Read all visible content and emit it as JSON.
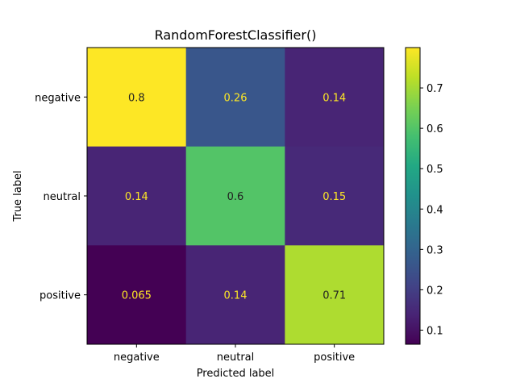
{
  "chart_data": {
    "type": "heatmap",
    "title": "RandomForestClassifier()",
    "xlabel": "Predicted label",
    "ylabel": "True label",
    "x_categories": [
      "negative",
      "neutral",
      "positive"
    ],
    "y_categories": [
      "negative",
      "neutral",
      "positive"
    ],
    "values": [
      [
        0.8,
        0.26,
        0.14
      ],
      [
        0.14,
        0.6,
        0.15
      ],
      [
        0.065,
        0.14,
        0.71
      ]
    ],
    "cell_labels": [
      [
        "0.8",
        "0.26",
        "0.14"
      ],
      [
        "0.14",
        "0.6",
        "0.15"
      ],
      [
        "0.065",
        "0.14",
        "0.71"
      ]
    ],
    "colormap": "viridis",
    "vmin": 0.065,
    "vmax": 0.8,
    "colorbar_ticks": [
      0.1,
      0.2,
      0.3,
      0.4,
      0.5,
      0.6,
      0.7
    ],
    "colorbar_tick_labels": [
      "0.1",
      "0.2",
      "0.3",
      "0.4",
      "0.5",
      "0.6",
      "0.7"
    ],
    "grid": false,
    "legend": "colorbar-right"
  }
}
